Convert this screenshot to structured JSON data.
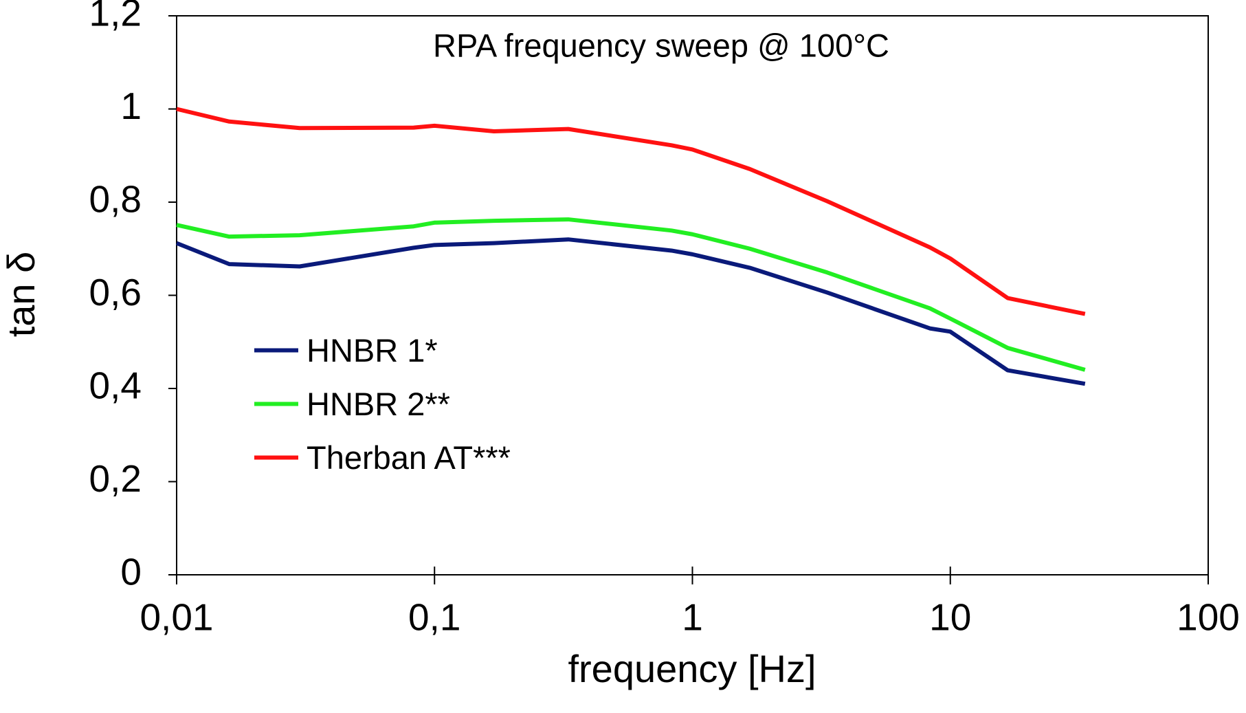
{
  "chart_data": {
    "type": "line",
    "title": "RPA frequency sweep @ 100°C",
    "xlabel": "frequency [Hz]",
    "ylabel": "tan δ",
    "x": [
      0.01,
      0.016,
      0.03,
      0.083,
      0.1,
      0.17,
      0.33,
      0.83,
      1,
      1.67,
      3.33,
      8.33,
      10,
      16.7,
      33.3
    ],
    "series": [
      {
        "name": "HNBR 1*",
        "color": "#0a1a7a",
        "values": [
          0.712,
          0.667,
          0.662,
          0.702,
          0.708,
          0.712,
          0.72,
          0.696,
          0.688,
          0.659,
          0.606,
          0.529,
          0.522,
          0.439,
          0.41
        ]
      },
      {
        "name": "HNBR 2**",
        "color": "#22ee22",
        "values": [
          0.751,
          0.726,
          0.729,
          0.748,
          0.756,
          0.76,
          0.763,
          0.739,
          0.731,
          0.7,
          0.649,
          0.572,
          0.55,
          0.487,
          0.44
        ]
      },
      {
        "name": "Therban AT***",
        "color": "#ff1111",
        "values": [
          1.0,
          0.973,
          0.959,
          0.96,
          0.964,
          0.952,
          0.957,
          0.922,
          0.913,
          0.871,
          0.802,
          0.703,
          0.679,
          0.594,
          0.56
        ]
      }
    ],
    "xscale": "log",
    "xlim": [
      0.01,
      100
    ],
    "xticks": [
      {
        "value": 0.01,
        "label": "0,01"
      },
      {
        "value": 0.1,
        "label": "0,1"
      },
      1,
      10,
      100
    ],
    "ylim": [
      0,
      1.2
    ],
    "yticks": [
      0,
      {
        "value": 0.2,
        "label": "0,2"
      },
      {
        "value": 0.4,
        "label": "0,4"
      },
      {
        "value": 0.6,
        "label": "0,6"
      },
      {
        "value": 0.8,
        "label": "0,8"
      },
      1,
      {
        "value": 1.2,
        "label": "1,2"
      }
    ],
    "grid": false,
    "legend": "center left"
  }
}
